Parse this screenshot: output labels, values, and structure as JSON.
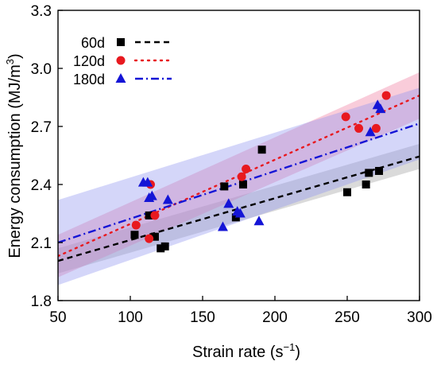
{
  "chart_data": {
    "type": "scatter",
    "xlabel_main": "Strain rate (s",
    "xlabel_sup": "−1",
    "xlabel_end": ")",
    "ylabel_main": "Energy consumption (MJ/m",
    "ylabel_sup": "3",
    "ylabel_end": ")",
    "xlim": [
      50,
      300
    ],
    "ylim": [
      1.8,
      3.3
    ],
    "xticks": [
      "50",
      "100",
      "150",
      "200",
      "250",
      "300"
    ],
    "yticks": [
      "1.8",
      "2.1",
      "2.4",
      "2.7",
      "3.0",
      "3.3"
    ],
    "legend_position": "top-left",
    "series": [
      {
        "name": "60d",
        "color": "#000000",
        "band_color": "#9e9e9e",
        "marker": "square",
        "line_style": "dash",
        "x": [
          103,
          113,
          117,
          121,
          124,
          165,
          173,
          178,
          191,
          250,
          263,
          265,
          272
        ],
        "y": [
          2.14,
          2.24,
          2.13,
          2.07,
          2.08,
          2.39,
          2.23,
          2.4,
          2.58,
          2.36,
          2.4,
          2.46,
          2.47
        ],
        "fit": [
          2.005,
          2.545
        ],
        "band_low": [
          1.94,
          2.48
        ],
        "band_high": [
          2.07,
          2.61
        ]
      },
      {
        "name": "120d",
        "color": "#e8191f",
        "band_color": "#f07a9e",
        "marker": "circle",
        "line_style": "dot",
        "x": [
          104,
          113,
          114,
          117,
          177,
          180,
          249,
          258,
          270,
          277
        ],
        "y": [
          2.19,
          2.12,
          2.4,
          2.24,
          2.44,
          2.48,
          2.75,
          2.69,
          2.69,
          2.86
        ],
        "fit": [
          2.03,
          2.86
        ],
        "band_low": [
          1.92,
          2.74
        ],
        "band_high": [
          2.14,
          2.98
        ]
      },
      {
        "name": "180d",
        "color": "#1515d6",
        "band_color": "#8f92f0",
        "marker": "triangle",
        "line_style": "dashdot",
        "x": [
          109,
          112,
          113,
          115,
          126,
          164,
          168,
          174,
          176,
          189,
          266,
          271,
          273
        ],
        "y": [
          2.41,
          2.41,
          2.33,
          2.34,
          2.32,
          2.18,
          2.3,
          2.26,
          2.25,
          2.21,
          2.67,
          2.81,
          2.79
        ],
        "fit": [
          2.1,
          2.715
        ],
        "band_low": [
          1.88,
          2.53
        ],
        "band_high": [
          2.32,
          2.9
        ]
      }
    ]
  }
}
